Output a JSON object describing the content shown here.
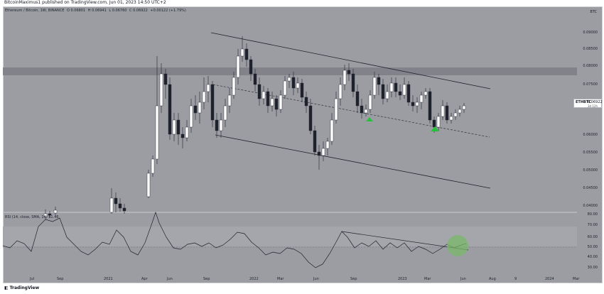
{
  "publish_line": "BitcoinMaximus1 published on TradingView.com, Jun 01, 2023 14:50 UTC+2",
  "header": {
    "symbol": "Ethereum / Bitcoin, 1W, BINANCE",
    "open": "O 0.06801",
    "high": "H 0.06941",
    "low": "L 0.06760",
    "close": "C 0.06922",
    "change": "+0.00122 (+1.79%)"
  },
  "currency": "BTC",
  "price_axis": [
    "0.09000",
    "0.08500",
    "0.08000",
    "0.07500",
    "0.07000",
    "0.06500",
    "0.06000",
    "0.05500",
    "0.05000",
    "0.04500",
    "0.04000"
  ],
  "ticker_tag": {
    "symbol": "ETHBTC",
    "price": "0.06922",
    "countdown": "3d 12h"
  },
  "rsi": {
    "header": "RSI (14, close, SMA, 14) 51.46",
    "axis": [
      "80.00",
      "70.00",
      "60.00",
      "50.00",
      "40.00",
      "30.00"
    ]
  },
  "time_axis": [
    "Jul",
    "Sep",
    "2021",
    "Apr",
    "Jun",
    "Sep",
    "2022",
    "Mar",
    "Jun",
    "Sep",
    "2023",
    "Mar",
    "Jun",
    "Aug",
    "9",
    "2024",
    "Mar"
  ],
  "footer": {
    "brand": "TradingView"
  },
  "colors": {
    "background": "#9b9da3",
    "bull_candle": "#ffffff",
    "bear_candle": "#1e222d",
    "resistance_zone": "#7f8187",
    "arrow": "#26c13b",
    "highlight_circle": "#7ab86a"
  }
}
